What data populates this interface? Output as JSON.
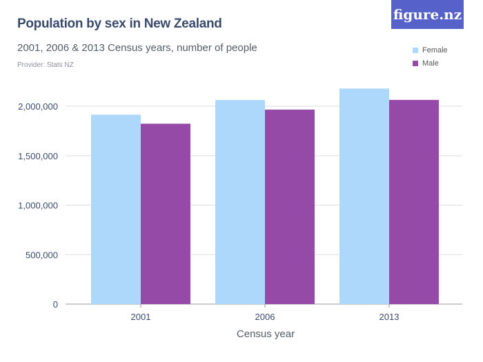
{
  "logo": "figure.nz",
  "chart_data": {
    "type": "bar",
    "title": "Population by sex in New Zealand",
    "subtitle": "2001, 2006 & 2013 Census years, number of people",
    "provider": "Provider: Stats NZ",
    "xlabel": "Census year",
    "ylabel": "",
    "categories": [
      "2001",
      "2006",
      "2013"
    ],
    "series": [
      {
        "name": "Female",
        "color": "#aed8fb",
        "values": [
          1914273,
          2062329,
          2178396
        ]
      },
      {
        "name": "Male",
        "color": "#964aa8",
        "values": [
          1823004,
          1965618,
          2063654
        ]
      }
    ],
    "ylim": [
      0,
      2000000
    ],
    "yticks": [
      0,
      500000,
      1000000,
      1500000,
      2000000
    ],
    "ytick_labels": [
      "0",
      "500,000",
      "1,000,000",
      "1,500,000",
      "2,000,000"
    ],
    "grid": true,
    "legend": "top-right"
  }
}
